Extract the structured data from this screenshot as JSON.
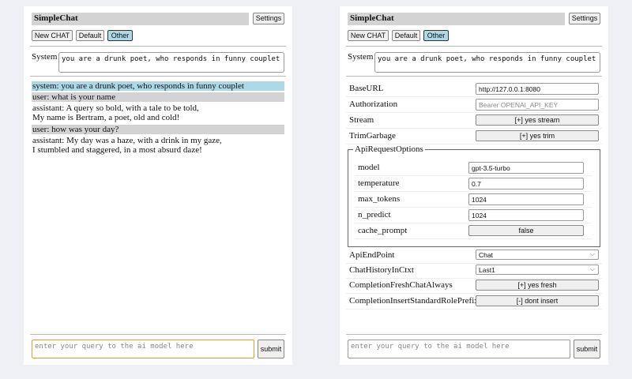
{
  "app": {
    "title": "SimpleChat",
    "settings_label": "Settings",
    "new_chat_label": "New CHAT",
    "chats": [
      "Default",
      "Other"
    ],
    "selected_chat": "Other",
    "system_label": "System",
    "system_prompt": "you are a drunk poet, who responds in funny couplet",
    "query_placeholder": "enter your query to the ai model here",
    "submit_label": "submit"
  },
  "chat": {
    "messages": [
      {
        "role": "system",
        "lines": [
          "system: you are a drunk poet, who responds in funny couplet"
        ]
      },
      {
        "role": "user",
        "lines": [
          "user: what is your name"
        ]
      },
      {
        "role": "assistant",
        "lines": [
          "assistant: A query so bold, with a tale to be told,",
          "My name is Bertram, a poet, old and cold!"
        ]
      },
      {
        "role": "user",
        "lines": [
          "user: how was your day?"
        ]
      },
      {
        "role": "assistant",
        "lines": [
          "assistant: My day was a haze, with a drink in my gaze,",
          "I stumbled and staggered, in a most absurd daze!"
        ]
      }
    ]
  },
  "settings": {
    "base_url": {
      "label": "BaseURL",
      "value": "http://127.0.0.1:8080"
    },
    "authorization": {
      "label": "Authorization",
      "placeholder": "Bearer OPENAI_API_KEY"
    },
    "stream": {
      "label": "Stream",
      "value": "[+] yes stream"
    },
    "trim": {
      "label": "TrimGarbage",
      "value": "[+] yes trim"
    },
    "api_options": {
      "legend": "ApiRequestOptions",
      "model": {
        "label": "model",
        "value": "gpt-3.5-turbo"
      },
      "temperature": {
        "label": "temperature",
        "value": "0.7"
      },
      "max_tokens": {
        "label": "max_tokens",
        "value": "1024"
      },
      "n_predict": {
        "label": "n_predict",
        "value": "1024"
      },
      "cache_prompt": {
        "label": "cache_prompt",
        "value": "false"
      }
    },
    "api_endpoint": {
      "label": "ApiEndPoint",
      "value": "Chat"
    },
    "history": {
      "label": "ChatHistoryInCtxt",
      "value": "Last1"
    },
    "fresh": {
      "label": "CompletionFreshChatAlways",
      "value": "[+] yes fresh"
    },
    "insert_prefix": {
      "label": "CompletionInsertStandardRolePrefix",
      "value": "[-] dont insert"
    }
  }
}
